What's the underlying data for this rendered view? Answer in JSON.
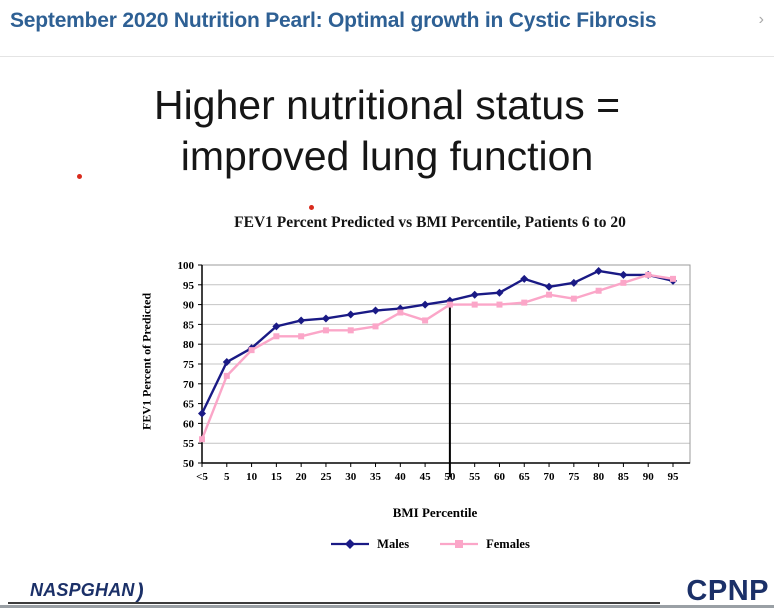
{
  "header": {
    "title": "September 2020 Nutrition Pearl: Optimal growth in Cystic Fibrosis",
    "chevron_icon": "›"
  },
  "slide": {
    "title_line1": "Higher nutritional status =",
    "title_line2": "improved lung function"
  },
  "chart_data": {
    "type": "line",
    "title": "FEV1 Percent Predicted vs BMI Percentile, Patients 6 to 20",
    "xlabel": "BMI Percentile",
    "ylabel": "FEV1 Percent of Predicted",
    "ylim": [
      50,
      100
    ],
    "yticks": [
      100,
      95,
      90,
      85,
      80,
      75,
      70,
      65,
      60,
      55,
      50
    ],
    "categories": [
      "<5",
      "5",
      "10",
      "15",
      "20",
      "25",
      "30",
      "35",
      "40",
      "45",
      "50",
      "55",
      "60",
      "65",
      "70",
      "75",
      "80",
      "85",
      "90",
      "95"
    ],
    "series": [
      {
        "name": "Males",
        "color": "#1a1a85",
        "marker": "diamond",
        "values": [
          62.5,
          75.5,
          79,
          84.5,
          86,
          86.5,
          87.5,
          88.5,
          89,
          90,
          91,
          92.5,
          93,
          96.5,
          94.5,
          95.5,
          98.5,
          97.5,
          97.5,
          96
        ]
      },
      {
        "name": "Females",
        "color": "#fba6c8",
        "marker": "square",
        "values": [
          56,
          72,
          78.5,
          82,
          82,
          83.5,
          83.5,
          84.5,
          88,
          86,
          90,
          90,
          90,
          90.5,
          92.5,
          91.5,
          93.5,
          95.5,
          97.5,
          96.5
        ]
      }
    ],
    "annotation_vline_category": "50",
    "grid": true,
    "legend_position": "bottom",
    "colors": {
      "grid": "#c4c4c4",
      "frame": "#9b9b9b",
      "axis": "#000000"
    }
  },
  "footer": {
    "left_logo": "NASPGHAN",
    "left_logo_swoosh": ")",
    "right_logo": "CPNP"
  }
}
